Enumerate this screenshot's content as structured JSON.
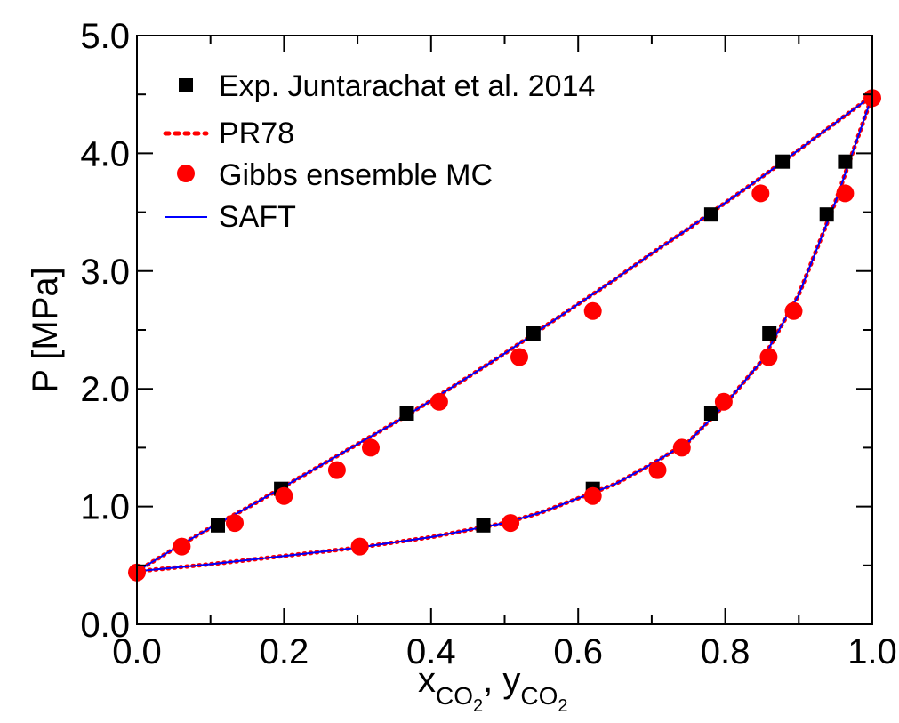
{
  "chart_data": {
    "type": "scatter",
    "title": "",
    "xlabel": "",
    "ylabel": "P [MPa]",
    "xlabel_parts": {
      "x_symbol": "x",
      "x_sub": "CO",
      "x_subsub": "2",
      "separator": ",",
      "y_symbol": "y",
      "y_sub": "CO",
      "y_subsub": "2"
    },
    "xlim": [
      0.0,
      1.0
    ],
    "ylim": [
      0.0,
      5.0
    ],
    "x_ticks": [
      0.0,
      0.2,
      0.4,
      0.6,
      0.8,
      1.0
    ],
    "x_tick_labels": [
      "0.0",
      "0.2",
      "0.4",
      "0.6",
      "0.8",
      "1.0"
    ],
    "y_ticks": [
      0.0,
      1.0,
      2.0,
      3.0,
      4.0,
      5.0
    ],
    "y_tick_labels": [
      "0.0",
      "1.0",
      "2.0",
      "3.0",
      "4.0",
      "5.0"
    ],
    "grid": false,
    "legend_position": "top-left",
    "series": [
      {
        "name": "Exp. Juntarachat et al. 2014",
        "kind": "marker",
        "marker": "square",
        "color": "#000000",
        "points": [
          {
            "x": 0.11,
            "y": 0.84
          },
          {
            "x": 0.196,
            "y": 1.15
          },
          {
            "x": 0.367,
            "y": 1.79
          },
          {
            "x": 0.539,
            "y": 2.47
          },
          {
            "x": 0.781,
            "y": 3.48
          },
          {
            "x": 0.878,
            "y": 3.93
          },
          {
            "x": 0.471,
            "y": 0.84
          },
          {
            "x": 0.62,
            "y": 1.15
          },
          {
            "x": 0.781,
            "y": 1.79
          },
          {
            "x": 0.86,
            "y": 2.47
          },
          {
            "x": 0.938,
            "y": 3.48
          },
          {
            "x": 0.963,
            "y": 3.93
          }
        ]
      },
      {
        "name": "PR78",
        "kind": "dotted-line",
        "color": "#ff0000",
        "curves": [
          {
            "x": [
              0.0,
              0.05,
              0.1,
              0.15,
              0.2,
              0.25,
              0.3,
              0.35,
              0.4,
              0.45,
              0.5,
              0.55,
              0.6,
              0.65,
              0.7,
              0.75,
              0.8,
              0.85,
              0.9,
              0.95,
              1.0
            ],
            "y": [
              0.45,
              0.64,
              0.82,
              0.99,
              1.17,
              1.35,
              1.53,
              1.71,
              1.9,
              2.1,
              2.3,
              2.51,
              2.72,
              2.93,
              3.15,
              3.36,
              3.58,
              3.8,
              4.03,
              4.26,
              4.49
            ]
          },
          {
            "x": [
              0.0,
              0.1,
              0.2,
              0.3,
              0.4,
              0.5,
              0.55,
              0.6,
              0.65,
              0.7,
              0.75,
              0.8,
              0.85,
              0.9,
              0.95,
              1.0
            ],
            "y": [
              0.45,
              0.51,
              0.58,
              0.65,
              0.74,
              0.86,
              0.95,
              1.07,
              1.19,
              1.36,
              1.55,
              1.87,
              2.24,
              2.8,
              3.59,
              4.49
            ]
          }
        ]
      },
      {
        "name": "Gibbs ensemble MC",
        "kind": "marker",
        "marker": "circle",
        "color": "#ff0000",
        "points": [
          {
            "x": 0.0,
            "y": 0.44
          },
          {
            "x": 0.061,
            "y": 0.66
          },
          {
            "x": 0.133,
            "y": 0.86
          },
          {
            "x": 0.2,
            "y": 1.09
          },
          {
            "x": 0.272,
            "y": 1.31
          },
          {
            "x": 0.318,
            "y": 1.5
          },
          {
            "x": 0.411,
            "y": 1.89
          },
          {
            "x": 0.52,
            "y": 2.27
          },
          {
            "x": 0.62,
            "y": 2.66
          },
          {
            "x": 0.848,
            "y": 3.66
          },
          {
            "x": 1.0,
            "y": 4.47
          },
          {
            "x": 0.303,
            "y": 0.66
          },
          {
            "x": 0.508,
            "y": 0.86
          },
          {
            "x": 0.62,
            "y": 1.09
          },
          {
            "x": 0.708,
            "y": 1.31
          },
          {
            "x": 0.741,
            "y": 1.5
          },
          {
            "x": 0.798,
            "y": 1.89
          },
          {
            "x": 0.859,
            "y": 2.27
          },
          {
            "x": 0.893,
            "y": 2.66
          },
          {
            "x": 0.963,
            "y": 3.66
          }
        ]
      },
      {
        "name": "SAFT",
        "kind": "solid-line",
        "color": "#0000ff",
        "curves": [
          {
            "x": [
              0.0,
              0.05,
              0.1,
              0.15,
              0.2,
              0.25,
              0.3,
              0.35,
              0.4,
              0.45,
              0.5,
              0.55,
              0.6,
              0.65,
              0.7,
              0.75,
              0.8,
              0.85,
              0.9,
              0.95,
              1.0
            ],
            "y": [
              0.45,
              0.64,
              0.82,
              0.99,
              1.17,
              1.35,
              1.53,
              1.71,
              1.9,
              2.1,
              2.3,
              2.51,
              2.72,
              2.93,
              3.15,
              3.36,
              3.58,
              3.8,
              4.03,
              4.26,
              4.49
            ]
          },
          {
            "x": [
              0.0,
              0.1,
              0.2,
              0.3,
              0.4,
              0.5,
              0.55,
              0.6,
              0.65,
              0.7,
              0.75,
              0.8,
              0.85,
              0.9,
              0.95,
              1.0
            ],
            "y": [
              0.45,
              0.51,
              0.58,
              0.65,
              0.74,
              0.86,
              0.95,
              1.07,
              1.19,
              1.36,
              1.55,
              1.87,
              2.24,
              2.8,
              3.59,
              4.49
            ]
          }
        ]
      }
    ]
  }
}
